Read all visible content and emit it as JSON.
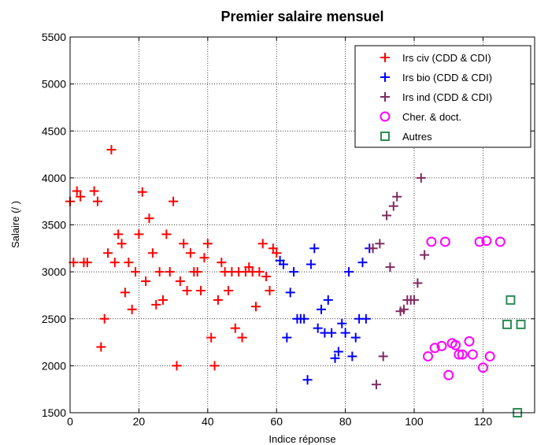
{
  "chart_data": {
    "type": "scatter",
    "title": "Premier salaire mensuel",
    "xlabel": "Indice réponse",
    "ylabel": "Salaire (/ )",
    "xlim": [
      0,
      135
    ],
    "ylim": [
      1500,
      5500
    ],
    "xticks": [
      "0",
      "20",
      "40",
      "60",
      "80",
      "100",
      "120"
    ],
    "yticks": [
      "1500",
      "2000",
      "2500",
      "3000",
      "3500",
      "4000",
      "4500",
      "5000",
      "5500"
    ],
    "grid": true,
    "legend_position": "top-right",
    "series": [
      {
        "name": "Irs civ (CDD & CDI)",
        "marker": "plus",
        "color": "#ff0000",
        "points": [
          [
            0,
            3750
          ],
          [
            1,
            3100
          ],
          [
            2,
            3860
          ],
          [
            3,
            3800
          ],
          [
            4,
            3100
          ],
          [
            5,
            3100
          ],
          [
            7,
            3860
          ],
          [
            8,
            3750
          ],
          [
            9,
            2200
          ],
          [
            10,
            2500
          ],
          [
            11,
            3200
          ],
          [
            12,
            4300
          ],
          [
            13,
            3100
          ],
          [
            14,
            3400
          ],
          [
            15,
            3300
          ],
          [
            16,
            2780
          ],
          [
            17,
            3100
          ],
          [
            18,
            2600
          ],
          [
            19,
            3000
          ],
          [
            20,
            3400
          ],
          [
            21,
            3850
          ],
          [
            22,
            2900
          ],
          [
            23,
            3570
          ],
          [
            24,
            3200
          ],
          [
            25,
            2650
          ],
          [
            26,
            3000
          ],
          [
            27,
            2700
          ],
          [
            28,
            3400
          ],
          [
            29,
            3000
          ],
          [
            30,
            3750
          ],
          [
            31,
            2000
          ],
          [
            32,
            2900
          ],
          [
            33,
            3300
          ],
          [
            34,
            2800
          ],
          [
            35,
            3200
          ],
          [
            36,
            3000
          ],
          [
            37,
            3000
          ],
          [
            38,
            2800
          ],
          [
            39,
            3150
          ],
          [
            40,
            3300
          ],
          [
            41,
            2300
          ],
          [
            42,
            2000
          ],
          [
            43,
            2700
          ],
          [
            44,
            3100
          ],
          [
            45,
            3000
          ],
          [
            46,
            2800
          ],
          [
            47,
            3000
          ],
          [
            48,
            2400
          ],
          [
            49,
            3000
          ],
          [
            50,
            2300
          ],
          [
            51,
            3000
          ],
          [
            52,
            3050
          ],
          [
            53,
            3000
          ],
          [
            54,
            2630
          ],
          [
            55,
            3000
          ],
          [
            56,
            3300
          ],
          [
            57,
            2950
          ],
          [
            58,
            2800
          ],
          [
            59,
            3250
          ],
          [
            60,
            3200
          ]
        ]
      },
      {
        "name": "Irs bio (CDD & CDI)",
        "marker": "plus",
        "color": "#0000ff",
        "points": [
          [
            61,
            3120
          ],
          [
            62,
            3080
          ],
          [
            63,
            2300
          ],
          [
            64,
            2780
          ],
          [
            65,
            3000
          ],
          [
            66,
            2500
          ],
          [
            67,
            2500
          ],
          [
            68,
            2500
          ],
          [
            69,
            1850
          ],
          [
            70,
            3080
          ],
          [
            71,
            3250
          ],
          [
            72,
            2400
          ],
          [
            73,
            2600
          ],
          [
            74,
            2350
          ],
          [
            75,
            2700
          ],
          [
            76,
            2350
          ],
          [
            77,
            2080
          ],
          [
            78,
            2150
          ],
          [
            79,
            2450
          ],
          [
            80,
            2350
          ],
          [
            81,
            3000
          ],
          [
            82,
            2100
          ],
          [
            83,
            2300
          ],
          [
            84,
            2500
          ],
          [
            85,
            3100
          ],
          [
            86,
            2500
          ],
          [
            87,
            3250
          ]
        ]
      },
      {
        "name": "Irs ind (CDD & CDI)",
        "marker": "plus",
        "color": "#7f2a5f",
        "points": [
          [
            88,
            3250
          ],
          [
            89,
            1800
          ],
          [
            90,
            3300
          ],
          [
            91,
            2100
          ],
          [
            92,
            3600
          ],
          [
            93,
            3050
          ],
          [
            94,
            3700
          ],
          [
            95,
            3800
          ],
          [
            96,
            2580
          ],
          [
            97,
            2600
          ],
          [
            98,
            2700
          ],
          [
            99,
            2700
          ],
          [
            100,
            2700
          ],
          [
            101,
            2880
          ],
          [
            102,
            4000
          ],
          [
            103,
            3180
          ]
        ]
      },
      {
        "name": "Cher. & doct.",
        "marker": "circle",
        "color": "#ff00ff",
        "points": [
          [
            104,
            2100
          ],
          [
            105,
            3320
          ],
          [
            106,
            2190
          ],
          [
            108,
            2210
          ],
          [
            109,
            3320
          ],
          [
            110,
            1900
          ],
          [
            111,
            2240
          ],
          [
            112,
            2220
          ],
          [
            113,
            2120
          ],
          [
            114,
            2120
          ],
          [
            116,
            2260
          ],
          [
            117,
            2120
          ],
          [
            119,
            3320
          ],
          [
            120,
            1980
          ],
          [
            121,
            3330
          ],
          [
            122,
            2100
          ],
          [
            125,
            3320
          ]
        ]
      },
      {
        "name": "Autres",
        "marker": "square",
        "color": "#2e8b57",
        "points": [
          [
            127,
            2440
          ],
          [
            128,
            2700
          ],
          [
            130,
            1500
          ],
          [
            131,
            2440
          ]
        ]
      }
    ]
  }
}
